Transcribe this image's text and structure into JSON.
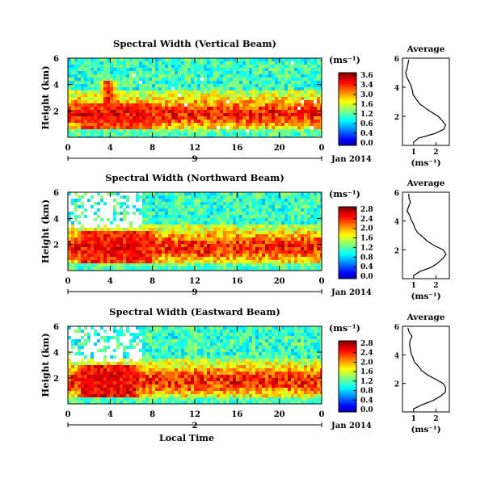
{
  "chart_data": [
    {
      "type": "heatmap",
      "title": "Spectral Width (Vertical Beam)",
      "ylabel": "Height (km)",
      "yticks": [
        "6",
        "4",
        "2"
      ],
      "ylim": [
        0,
        6
      ],
      "xticks": [
        "0",
        "4",
        "8",
        "12",
        "16",
        "20",
        "0"
      ],
      "xlim": [
        0,
        24
      ],
      "day_label": "9",
      "date_label": "Jan 2014",
      "colorbar": {
        "label": "(ms⁻¹)",
        "ticks": [
          "3.6",
          "3.4",
          "3.0",
          "1.6",
          "1.2",
          "0.6",
          "0.4",
          "0.0"
        ],
        "range": [
          0,
          3.6
        ]
      },
      "average_profile": {
        "title": "Average",
        "xlabel": "(ms⁻¹)",
        "xticks": [
          "1",
          "2"
        ],
        "yticks": [
          "6",
          "4",
          "2"
        ],
        "height_km": [
          0.2,
          0.5,
          0.8,
          1.1,
          1.4,
          1.7,
          2.0,
          2.3,
          2.6,
          2.9,
          3.2,
          3.5,
          3.8,
          4.1,
          4.4,
          4.7,
          5.0,
          5.3,
          5.6,
          5.9
        ],
        "width_ms": [
          1.0,
          1.2,
          1.9,
          2.35,
          2.45,
          2.3,
          2.1,
          1.8,
          1.5,
          1.25,
          1.1,
          1.0,
          0.95,
          0.9,
          0.8,
          0.7,
          0.65,
          0.7,
          0.75,
          0.8
        ]
      },
      "enhanced_regions": [
        {
          "from_hour": 0.2,
          "to_hour": 9.0,
          "low_km": 0.6,
          "high_km": 2.5,
          "value": 3.2
        },
        {
          "from_hour": 2.5,
          "to_hour": 5.2,
          "low_km": 2.0,
          "high_km": 4.2,
          "value": 3.4
        },
        {
          "from_hour": 18.0,
          "to_hour": 23.5,
          "low_km": 1.8,
          "high_km": 2.2,
          "value": 2.8
        }
      ],
      "missing_data": "few"
    },
    {
      "type": "heatmap",
      "title": "Spectral Width (Northward Beam)",
      "ylabel": "Height (km)",
      "yticks": [
        "6",
        "4",
        "2"
      ],
      "ylim": [
        0,
        6
      ],
      "xticks": [
        "0",
        "4",
        "8",
        "12",
        "16",
        "20",
        "0"
      ],
      "xlim": [
        0,
        24
      ],
      "day_label": "9",
      "date_label": "Jan 2014",
      "colorbar": {
        "label": "(ms⁻¹)",
        "ticks": [
          "2.8",
          "2.4",
          "2.0",
          "1.6",
          "1.2",
          "0.8",
          "0.4",
          "0.0"
        ],
        "range": [
          0,
          2.8
        ]
      },
      "average_profile": {
        "title": "Average",
        "xlabel": "(ms⁻¹)",
        "xticks": [
          "1",
          "2"
        ],
        "yticks": [
          "6",
          "4",
          "2"
        ],
        "height_km": [
          0.2,
          0.5,
          0.8,
          1.1,
          1.4,
          1.7,
          2.0,
          2.3,
          2.6,
          2.9,
          3.2,
          3.5,
          3.8,
          4.1,
          4.4,
          4.7,
          5.0,
          5.3,
          5.6,
          5.9
        ],
        "width_ms": [
          1.0,
          1.3,
          1.8,
          2.1,
          2.3,
          2.45,
          2.35,
          1.9,
          1.6,
          1.4,
          1.2,
          1.05,
          1.0,
          0.9,
          0.8,
          0.7,
          0.75,
          0.85,
          0.8,
          0.75
        ]
      },
      "enhanced_regions": [
        {
          "from_hour": 0.2,
          "to_hour": 9.0,
          "low_km": 0.6,
          "high_km": 3.0,
          "value": 2.6
        },
        {
          "from_hour": 17.5,
          "to_hour": 23.5,
          "low_km": 1.4,
          "high_km": 2.2,
          "value": 2.4
        }
      ],
      "missing_data": "upper levels 0-7 h"
    },
    {
      "type": "heatmap",
      "title": "Spectral Width (Eastward Beam)",
      "ylabel": "Height (km)",
      "yticks": [
        "6",
        "4",
        "2"
      ],
      "ylim": [
        0,
        6
      ],
      "xticks": [
        "0",
        "4",
        "8",
        "12",
        "16",
        "20",
        "0"
      ],
      "xlim": [
        0,
        24
      ],
      "day_label": "2",
      "date_label": "Jan 2014",
      "xlabel": "Local Time",
      "colorbar": {
        "label": "(ms⁻¹)",
        "ticks": [
          "2.8",
          "2.4",
          "2.0",
          "1.6",
          "1.2",
          "0.8",
          "0.4",
          "0.0"
        ],
        "range": [
          0,
          2.8
        ]
      },
      "average_profile": {
        "title": "Average",
        "xlabel": "(ms⁻¹)",
        "xticks": [
          "1",
          "2"
        ],
        "yticks": [
          "6",
          "4",
          "2"
        ],
        "height_km": [
          0.2,
          0.5,
          0.8,
          1.1,
          1.4,
          1.7,
          2.0,
          2.3,
          2.6,
          2.9,
          3.2,
          3.5,
          3.8,
          4.1,
          4.4,
          4.7,
          5.0,
          5.3,
          5.6,
          5.9
        ],
        "width_ms": [
          1.0,
          1.4,
          1.9,
          2.2,
          2.4,
          2.45,
          2.3,
          1.95,
          1.6,
          1.35,
          1.2,
          1.05,
          0.95,
          0.9,
          0.85,
          0.8,
          0.85,
          0.9,
          0.8,
          0.75
        ]
      },
      "enhanced_regions": [
        {
          "from_hour": 0.2,
          "to_hour": 7.5,
          "low_km": 0.6,
          "high_km": 3.0,
          "value": 2.7
        },
        {
          "from_hour": 17.0,
          "to_hour": 23.5,
          "low_km": 1.6,
          "high_km": 2.2,
          "value": 2.2
        }
      ],
      "missing_data": "upper levels 0-7 h"
    }
  ]
}
